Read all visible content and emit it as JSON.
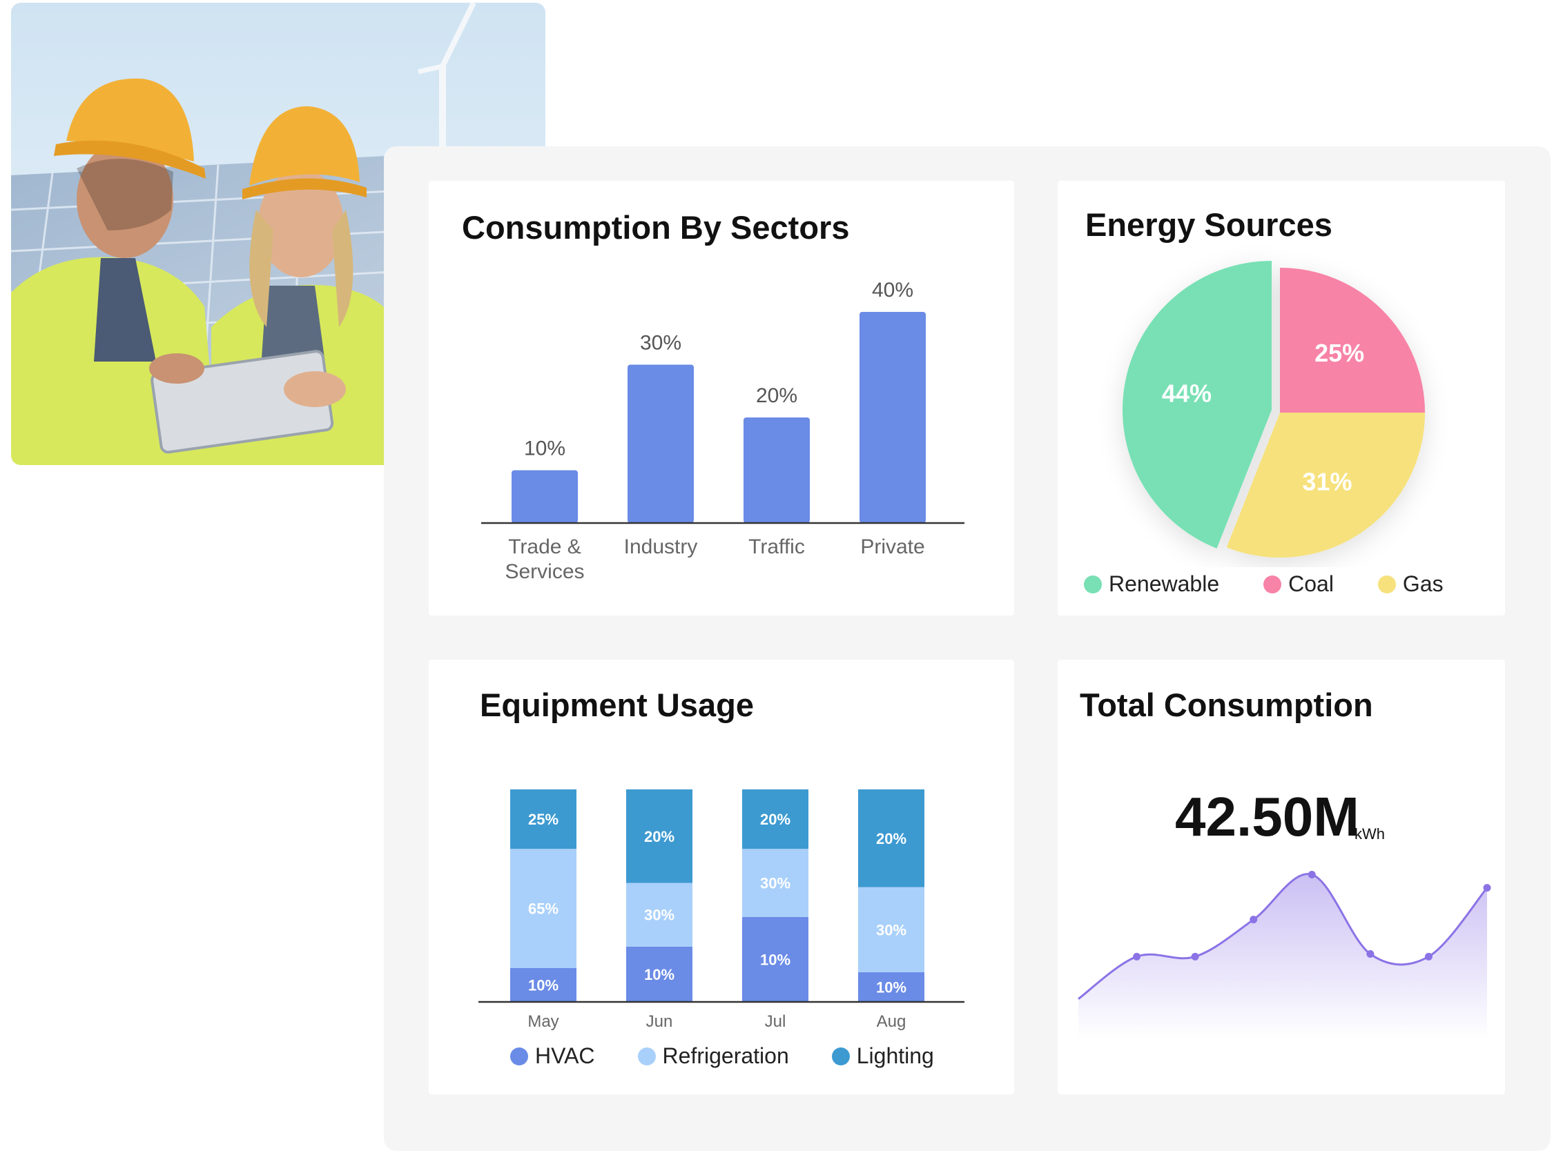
{
  "photo": {
    "alt": "Two engineers in hard hats and safety vests looking at a tablet"
  },
  "colors": {
    "bar": "#6a8be6",
    "hvac": "#6a8be6",
    "refrigeration": "#a9d0fa",
    "lighting": "#3d9ad1",
    "renewable": "#78e0b4",
    "coal": "#f783a6",
    "gas": "#f6e17c",
    "line": "#8b73e6"
  },
  "sectors": {
    "title": "Consumption By Sectors",
    "chart_data": {
      "type": "bar",
      "categories": [
        "Trade & Services",
        "Industry",
        "Traffic",
        "Private"
      ],
      "category_lines": [
        [
          "Trade &",
          "Services"
        ],
        [
          "Industry"
        ],
        [
          "Traffic"
        ],
        [
          "Private"
        ]
      ],
      "values": [
        10,
        30,
        20,
        40
      ],
      "value_labels": [
        "10%",
        "30%",
        "20%",
        "40%"
      ],
      "ylim": [
        0,
        40
      ]
    }
  },
  "sources": {
    "title": "Energy Sources",
    "chart_data": {
      "type": "pie",
      "slices": [
        {
          "name": "Renewable",
          "value": 44,
          "label": "44%"
        },
        {
          "name": "Coal",
          "value": 25,
          "label": "25%"
        },
        {
          "name": "Gas",
          "value": 31,
          "label": "31%"
        }
      ],
      "legend": "bottom"
    },
    "legend": [
      "Renewable",
      "Coal",
      "Gas"
    ]
  },
  "equipment": {
    "title": "Equipment Usage",
    "chart_data": {
      "type": "bar",
      "stacked": true,
      "categories": [
        "May",
        "Jun",
        "Jul",
        "Aug"
      ],
      "series": [
        {
          "name": "HVAC",
          "values": [
            10,
            10,
            10,
            10
          ],
          "labels": [
            "10%",
            "10%",
            "10%",
            "10%"
          ],
          "display": [
            16,
            26,
            40,
            14
          ]
        },
        {
          "name": "Refrigeration",
          "values": [
            65,
            30,
            30,
            30
          ],
          "labels": [
            "65%",
            "30%",
            "30%",
            "30%"
          ],
          "display": [
            56,
            30,
            32,
            40
          ]
        },
        {
          "name": "Lighting",
          "values": [
            25,
            20,
            20,
            20
          ],
          "labels": [
            "25%",
            "20%",
            "20%",
            "20%"
          ],
          "display": [
            28,
            44,
            28,
            46
          ]
        }
      ],
      "legend": "bottom"
    },
    "legend": [
      "HVAC",
      "Refrigeration",
      "Lighting"
    ]
  },
  "total": {
    "title": "Total Consumption",
    "value": "42.50M",
    "unit": "kWh",
    "chart_data": {
      "type": "area",
      "x": [
        0,
        1,
        2,
        3,
        4,
        5,
        6,
        7
      ],
      "y": [
        10,
        26,
        26,
        40,
        57,
        27,
        26,
        52
      ],
      "ylim": [
        0,
        60
      ],
      "xlabel": "",
      "ylabel": ""
    }
  }
}
